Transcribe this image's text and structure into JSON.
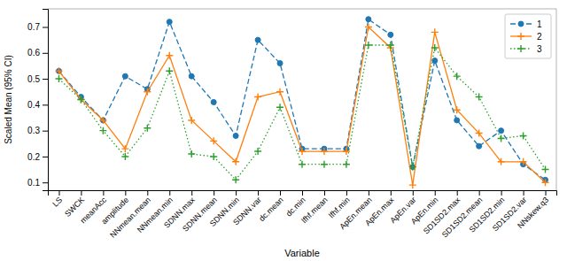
{
  "chart_data": {
    "type": "line",
    "xlabel": "Variable",
    "ylabel": "Scaled Mean (95% CI)",
    "categories": [
      "LS",
      "SWCK",
      "meanAcc",
      "amplitude",
      "NNmean.mean",
      "NNmean.min",
      "SDNN.max",
      "SDNN.mean",
      "SDNN.min",
      "SDNN.var",
      "dc.mean",
      "dc.min",
      "lfhf.mean",
      "lfhf.min",
      "ApEn.mean",
      "ApEn.max",
      "ApEn.var",
      "ApEn.min",
      "SD1SD2.max",
      "SD1SD2.mean",
      "SD1SD2.min",
      "SD1SD2.var",
      "NNskew.q3"
    ],
    "series": [
      {
        "name": "1",
        "color": "#1f77b4",
        "line_style": "dashed",
        "marker": "circle",
        "values": [
          0.53,
          0.43,
          0.34,
          0.51,
          0.46,
          0.72,
          0.51,
          0.41,
          0.28,
          0.65,
          0.56,
          0.23,
          0.23,
          0.23,
          0.73,
          0.67,
          0.16,
          0.57,
          0.34,
          0.24,
          0.3,
          0.17,
          0.11
        ]
      },
      {
        "name": "2",
        "color": "#ff7f0e",
        "line_style": "solid",
        "marker": "plus",
        "values": [
          0.53,
          0.42,
          0.34,
          0.23,
          0.45,
          0.59,
          0.34,
          0.26,
          0.18,
          0.43,
          0.45,
          0.22,
          0.22,
          0.22,
          0.7,
          0.62,
          0.09,
          0.68,
          0.38,
          0.29,
          0.18,
          0.18,
          0.1
        ]
      },
      {
        "name": "3",
        "color": "#2ca02c",
        "line_style": "dotted",
        "marker": "plus",
        "values": [
          0.5,
          0.42,
          0.3,
          0.2,
          0.31,
          0.53,
          0.21,
          0.2,
          0.11,
          0.22,
          0.39,
          0.17,
          0.17,
          0.17,
          0.63,
          0.63,
          0.16,
          0.62,
          0.51,
          0.43,
          0.27,
          0.28,
          0.15
        ]
      }
    ],
    "ylim": [
      0.07,
      0.77
    ],
    "yticks": [
      0.1,
      0.2,
      0.3,
      0.4,
      0.5,
      0.6,
      0.7
    ],
    "grid": false,
    "legend": "upper right"
  }
}
